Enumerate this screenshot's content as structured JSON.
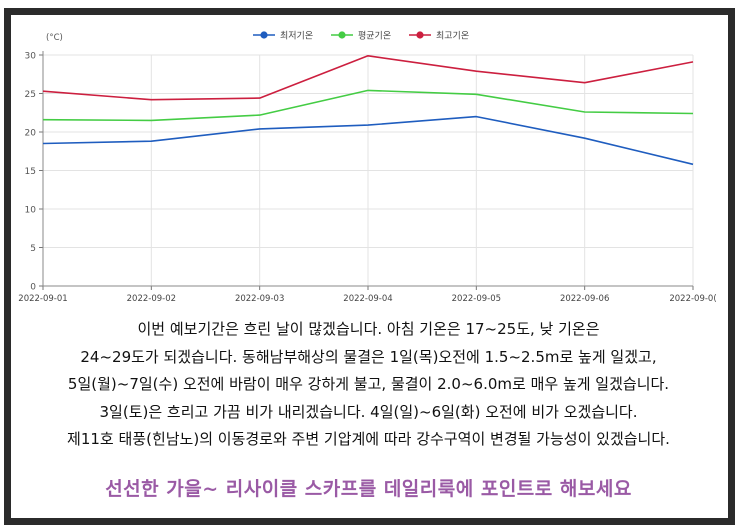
{
  "chart_data": {
    "type": "line",
    "unit_label": "(°C)",
    "x": [
      "2022-09-01",
      "2022-09-02",
      "2022-09-03",
      "2022-09-04",
      "2022-09-05",
      "2022-09-06",
      "2022-09-0("
    ],
    "ylim": [
      0,
      30
    ],
    "yticks": [
      0,
      5,
      10,
      15,
      20,
      25,
      30
    ],
    "grid": true,
    "legend_position": "top-center",
    "series": [
      {
        "name": "최저기온",
        "color": "#1f5dbf",
        "values": [
          18.5,
          18.8,
          20.4,
          20.9,
          22.0,
          19.2,
          15.8
        ]
      },
      {
        "name": "평균기온",
        "color": "#44cc44",
        "values": [
          21.6,
          21.5,
          22.2,
          25.4,
          24.9,
          22.6,
          22.4
        ]
      },
      {
        "name": "최고기온",
        "color": "#cc1f3f",
        "values": [
          25.3,
          24.2,
          24.4,
          29.9,
          27.9,
          26.4,
          29.1
        ]
      }
    ]
  },
  "description": {
    "lines": [
      "이번 예보기간은 흐린 날이 많겠습니다. 아침 기온은 17~25도, 낮 기온은",
      "24~29도가 되겠습니다. 동해남부해상의 물결은 1일(목)오전에 1.5~2.5m로 높게 일겠고,",
      "5일(월)~7일(수) 오전에 바람이 매우 강하게 불고, 물결이 2.0~6.0m로 매우 높게 일겠습니다.",
      "3일(토)은 흐리고 가끔 비가 내리겠습니다. 4일(일)~6일(화) 오전에 비가 오겠습니다.",
      "제11호 태풍(힌남노)의 이동경로와 주변 기압계에 따라 강수구역이 변경될 가능성이 있겠습니다."
    ],
    "color": "#111111"
  },
  "promo": {
    "text": "선선한 가을~ 리사이클 스카프를 데일리룩에 포인트로 해보세요",
    "color": "#9a5aa5"
  }
}
